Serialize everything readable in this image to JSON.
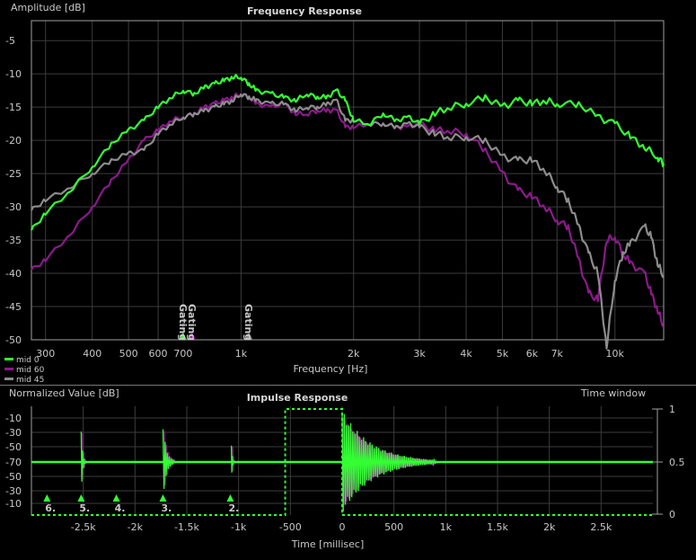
{
  "chart_data": [
    {
      "type": "line",
      "title": "Frequency Response",
      "ylabel": "Amplitude [dB]",
      "xlabel": "Frequency [Hz]",
      "x_scale": "log",
      "xlim": [
        275,
        13500
      ],
      "ylim": [
        -50,
        -2
      ],
      "grid": true,
      "legend_position": "bottom-left",
      "x_ticks": [
        {
          "value": 300,
          "label": "300"
        },
        {
          "value": 400,
          "label": "400"
        },
        {
          "value": 500,
          "label": "500"
        },
        {
          "value": 600,
          "label": "600"
        },
        {
          "value": 700,
          "label": "700"
        },
        {
          "value": 1000,
          "label": "1k"
        },
        {
          "value": 2000,
          "label": "2k"
        },
        {
          "value": 3000,
          "label": "3k"
        },
        {
          "value": 4000,
          "label": "4k"
        },
        {
          "value": 5000,
          "label": "5k"
        },
        {
          "value": 6000,
          "label": "6k"
        },
        {
          "value": 7000,
          "label": "7k"
        },
        {
          "value": 10000,
          "label": "10k"
        }
      ],
      "y_ticks": [
        -5,
        -10,
        -15,
        -20,
        -25,
        -30,
        -35,
        -40,
        -45,
        -50
      ],
      "gating_markers": [
        {
          "label": "Gating",
          "freq": 700,
          "color": "#33ff33"
        },
        {
          "label": "Gating",
          "freq": 740,
          "color": "#a020a0"
        },
        {
          "label": "Gating",
          "freq": 1050,
          "color": "#909090"
        }
      ],
      "series": [
        {
          "name": "mid 0",
          "color": "#33ff33",
          "x": [
            275,
            300,
            350,
            400,
            450,
            500,
            550,
            600,
            650,
            700,
            750,
            800,
            850,
            900,
            950,
            1000,
            1050,
            1100,
            1200,
            1300,
            1400,
            1500,
            1600,
            1700,
            1800,
            1900,
            2000,
            2200,
            2400,
            2600,
            2800,
            3000,
            3300,
            3600,
            4000,
            4500,
            5000,
            5500,
            6000,
            6500,
            7000,
            8000,
            9000,
            10000,
            11000,
            12000,
            13000,
            13500
          ],
          "y": [
            -33.5,
            -31,
            -27.5,
            -24,
            -20.5,
            -18.5,
            -17,
            -15,
            -13.5,
            -12.5,
            -13,
            -12,
            -11.5,
            -11,
            -10.5,
            -10.5,
            -11.5,
            -12.5,
            -13,
            -13.5,
            -14,
            -13,
            -13.5,
            -13.5,
            -12.5,
            -14,
            -17,
            -17.5,
            -16,
            -17,
            -16.5,
            -17.5,
            -16,
            -15,
            -14.5,
            -13.5,
            -15,
            -14,
            -14.5,
            -14,
            -14.5,
            -14.5,
            -16.5,
            -17.5,
            -19.5,
            -21,
            -22.5,
            -23.5
          ]
        },
        {
          "name": "mid 60",
          "color": "#8b1a8b",
          "x": [
            275,
            300,
            350,
            400,
            450,
            500,
            550,
            600,
            650,
            700,
            750,
            800,
            850,
            900,
            950,
            1000,
            1050,
            1100,
            1200,
            1300,
            1400,
            1500,
            1600,
            1700,
            1800,
            1900,
            2000,
            2200,
            2400,
            2600,
            2800,
            3000,
            3300,
            3600,
            4000,
            4500,
            5000,
            5500,
            6000,
            6500,
            7000,
            7500,
            8000,
            8500,
            9000,
            9500,
            10000,
            10500,
            11000,
            12000,
            12500,
            13000,
            13500
          ],
          "y": [
            -39.5,
            -38,
            -34,
            -30,
            -26,
            -23,
            -20,
            -18.5,
            -17,
            -16.5,
            -16,
            -15,
            -14.5,
            -14,
            -13.5,
            -13,
            -13.5,
            -14.5,
            -15,
            -14.5,
            -16,
            -16,
            -15.5,
            -15.5,
            -15.5,
            -18,
            -18,
            -17.5,
            -17.5,
            -18,
            -18,
            -17.5,
            -18.5,
            -18.5,
            -19,
            -21.5,
            -25,
            -27.5,
            -28.5,
            -30,
            -32,
            -33,
            -38,
            -43,
            -44,
            -35,
            -34.5,
            -37,
            -38.5,
            -40,
            -43,
            -45.5,
            -48
          ]
        },
        {
          "name": "mid 45",
          "color": "#8c8c8c",
          "x": [
            275,
            300,
            350,
            400,
            450,
            500,
            550,
            600,
            650,
            700,
            750,
            800,
            850,
            900,
            950,
            1000,
            1050,
            1100,
            1200,
            1300,
            1400,
            1500,
            1600,
            1700,
            1800,
            1900,
            2000,
            2200,
            2400,
            2600,
            2800,
            3000,
            3300,
            3600,
            4000,
            4500,
            5000,
            5500,
            6000,
            6500,
            7000,
            7500,
            8000,
            8500,
            9000,
            9500,
            10000,
            10500,
            11000,
            12000,
            12500,
            13000,
            13500
          ],
          "y": [
            -30.5,
            -29,
            -27,
            -25,
            -23,
            -22,
            -21.5,
            -19,
            -17.5,
            -16.5,
            -16,
            -15.5,
            -15,
            -14.5,
            -14,
            -13,
            -13.5,
            -14,
            -14.5,
            -14.5,
            -15.5,
            -15,
            -15,
            -14.5,
            -14,
            -17,
            -17,
            -17.5,
            -17.5,
            -18,
            -17.5,
            -18,
            -19,
            -19.5,
            -19.5,
            -20,
            -22.5,
            -23,
            -23,
            -24.5,
            -27,
            -29,
            -33,
            -37,
            -40,
            -51,
            -41,
            -37,
            -35.5,
            -33,
            -34.5,
            -38.5,
            -40.5
          ]
        }
      ]
    },
    {
      "type": "line",
      "title": "Impulse Response",
      "ylabel": "Normalized Value [dB]",
      "xlabel": "Time [millisec]",
      "y2label": "Time window",
      "xlim": [
        -3000,
        3000
      ],
      "grid": true,
      "x_ticks": [
        {
          "value": -2500,
          "label": "-2.5k"
        },
        {
          "value": -2000,
          "label": "-2k"
        },
        {
          "value": -1500,
          "label": "-1.5k"
        },
        {
          "value": -1000,
          "label": "-1k"
        },
        {
          "value": -500,
          "label": "-500"
        },
        {
          "value": 0,
          "label": "0"
        },
        {
          "value": 500,
          "label": "500"
        },
        {
          "value": 1000,
          "label": "1k"
        },
        {
          "value": 1500,
          "label": "1.5k"
        },
        {
          "value": 2000,
          "label": "2k"
        },
        {
          "value": 2500,
          "label": "2.5k"
        }
      ],
      "y_ticks": [
        "-10",
        "-30",
        "-50",
        "-70",
        "-50",
        "-30",
        "-10"
      ],
      "y2_ticks": [
        "1",
        "0.5",
        "0"
      ],
      "window": {
        "start": -550,
        "end": 0,
        "color": "#33ff33"
      },
      "bursts": [
        {
          "t": -2520,
          "amp": 0.65,
          "dur": 40
        },
        {
          "t": -1730,
          "amp": 0.7,
          "dur": 110
        },
        {
          "t": -1070,
          "amp": 0.35,
          "dur": 25
        },
        {
          "t": 0,
          "amp": 1.0,
          "dur": 900
        }
      ],
      "markers": [
        {
          "label": "6.",
          "t": -2850
        },
        {
          "label": "5.",
          "t": -2520
        },
        {
          "label": "4.",
          "t": -2180
        },
        {
          "label": "3.",
          "t": -1730
        },
        {
          "label": "2.",
          "t": -1080
        }
      ]
    }
  ]
}
